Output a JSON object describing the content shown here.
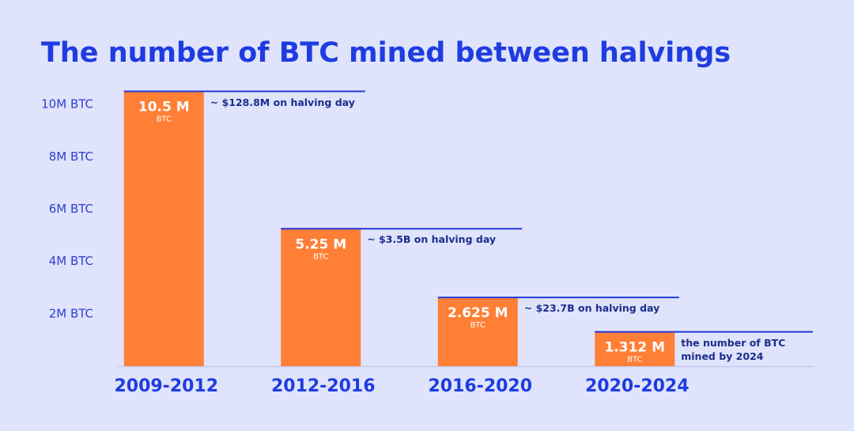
{
  "chart_data": {
    "type": "bar",
    "title": "The number of BTC mined between halvings",
    "categories": [
      "2009-2012",
      "2012-2016",
      "2016-2020",
      "2020-2024"
    ],
    "values": [
      10.5,
      5.25,
      2.625,
      1.312
    ],
    "value_labels": [
      "10.5 M",
      "5.25 M",
      "2.625 M",
      "1.312 M"
    ],
    "value_unit": "BTC",
    "annotations": [
      "~ $128.8M on halving day",
      "~ $3.5B on halving day",
      "~ $23.7B on halving day",
      "the number of BTC mined by 2024"
    ],
    "color": "#fe7f35",
    "ylim": [
      0,
      11
    ],
    "yticks": [
      {
        "value": 2,
        "label": "2M BTC"
      },
      {
        "value": 4,
        "label": "4M BTC"
      },
      {
        "value": 6,
        "label": "6M BTC"
      },
      {
        "value": 8,
        "label": "8M BTC"
      },
      {
        "value": 10,
        "label": "10M BTC"
      }
    ]
  }
}
